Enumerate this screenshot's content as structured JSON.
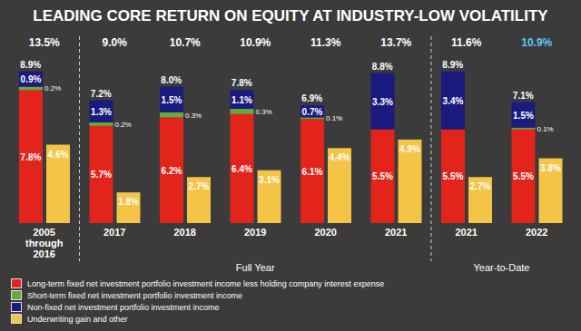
{
  "chart_data": {
    "type": "bar",
    "title": "LEADING CORE RETURN ON EQUITY AT INDUSTRY-LOW VOLATILITY",
    "categories": [
      "2005 through 2016",
      "2017",
      "2018",
      "2019",
      "2020",
      "2021",
      "2021",
      "2022"
    ],
    "groups": [
      {
        "label": "Full Year",
        "start": 1,
        "end": 5
      },
      {
        "label": "Year-to-Date",
        "start": 6,
        "end": 7
      }
    ],
    "series": [
      {
        "name": "Long-term fixed net investment portfolio investment income less holding company interest expense",
        "color": "#e3241b",
        "stacked": true,
        "values": [
          7.8,
          5.7,
          6.2,
          6.4,
          6.1,
          5.5,
          5.5,
          5.5
        ],
        "value_labels": [
          "7.8%",
          "5.7%",
          "6.2%",
          "6.4%",
          "6.1%",
          "5.5%",
          "5.5%",
          "5.5%"
        ]
      },
      {
        "name": "Short-term fixed net investment portfolio investment income",
        "color": "#6aaa3a",
        "stacked": true,
        "values": [
          0.2,
          0.2,
          0.3,
          0.3,
          0.1,
          null,
          null,
          0.1
        ],
        "value_labels": [
          "0.2%",
          "0.2%",
          "0.3%",
          "0.3%",
          "0.1%",
          null,
          null,
          "0.1%"
        ]
      },
      {
        "name": "Non-fixed net investment portfolio investment income",
        "color": "#1b1a7e",
        "stacked": true,
        "values": [
          0.9,
          1.3,
          1.5,
          1.1,
          0.7,
          3.3,
          3.4,
          1.5
        ],
        "value_labels": [
          "0.9%",
          "1.3%",
          "1.5%",
          "1.1%",
          "0.7%",
          "3.3%",
          "3.4%",
          "1.5%"
        ]
      },
      {
        "name": "Underwriting gain and other",
        "color": "#f3c445",
        "stacked": false,
        "values": [
          4.6,
          1.8,
          2.7,
          3.1,
          4.4,
          4.9,
          2.7,
          3.8
        ],
        "value_labels": [
          "4.6%",
          "1.8%",
          "2.7%",
          "3.1%",
          "4.4%",
          "4.9%",
          "2.7%",
          "3.8%"
        ]
      }
    ],
    "stack_totals": {
      "values": [
        8.9,
        7.2,
        8.0,
        7.8,
        6.9,
        8.8,
        8.9,
        7.1
      ],
      "value_labels": [
        "8.9%",
        "7.2%",
        "8.0%",
        "7.8%",
        "6.9%",
        "8.8%",
        "8.9%",
        "7.1%"
      ]
    },
    "totals": {
      "values": [
        13.5,
        9.0,
        10.7,
        10.9,
        11.3,
        13.7,
        11.6,
        10.9
      ],
      "value_labels": [
        "13.5%",
        "9.0%",
        "10.7%",
        "10.9%",
        "11.3%",
        "13.7%",
        "11.6%",
        "10.9%"
      ],
      "colors": [
        "#ffffff",
        "#ffffff",
        "#ffffff",
        "#ffffff",
        "#ffffff",
        "#ffffff",
        "#ffffff",
        "#5fc6f0"
      ]
    },
    "ylim": [
      0,
      10
    ],
    "data_labels": true,
    "tick_labels": "x",
    "legend": "bottom-left",
    "grid": false
  }
}
